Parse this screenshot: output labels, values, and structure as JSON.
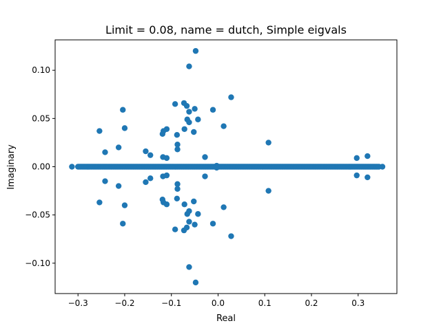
{
  "chart_data": {
    "type": "scatter",
    "title": "Limit = 0.08, name = dutch, Simple eigvals",
    "xlabel": "Real",
    "ylabel": "Imaginary",
    "xlim": [
      -0.349,
      0.383
    ],
    "ylim": [
      -0.1315,
      0.1315
    ],
    "xticks": [
      -0.3,
      -0.2,
      -0.1,
      0.0,
      0.1,
      0.2,
      0.3
    ],
    "xtick_labels": [
      "−0.3",
      "−0.2",
      "−0.1",
      "0.0",
      "0.1",
      "0.2",
      "0.3"
    ],
    "yticks": [
      -0.1,
      -0.05,
      0.0,
      0.05,
      0.1
    ],
    "ytick_labels": [
      "−0.10",
      "−0.05",
      "0.00",
      "0.05",
      "0.10"
    ],
    "marker_color": "#1f77b4",
    "grid": false,
    "real_axis_dense_ranges": [
      [
        -0.3,
        0.345
      ]
    ],
    "series": [
      {
        "values": [
          {
            "x": -0.313,
            "y": 0.0
          },
          {
            "x": 0.352,
            "y": 0.0
          },
          {
            "x": -0.048,
            "y": 0.12
          },
          {
            "x": -0.048,
            "y": -0.12
          },
          {
            "x": -0.062,
            "y": 0.104
          },
          {
            "x": -0.062,
            "y": -0.104
          },
          {
            "x": 0.028,
            "y": 0.072
          },
          {
            "x": 0.028,
            "y": -0.072
          },
          {
            "x": -0.073,
            "y": 0.066
          },
          {
            "x": -0.073,
            "y": -0.066
          },
          {
            "x": -0.092,
            "y": 0.065
          },
          {
            "x": -0.092,
            "y": -0.065
          },
          {
            "x": -0.067,
            "y": 0.063
          },
          {
            "x": -0.067,
            "y": -0.063
          },
          {
            "x": -0.05,
            "y": 0.06
          },
          {
            "x": -0.05,
            "y": -0.06
          },
          {
            "x": -0.204,
            "y": 0.059
          },
          {
            "x": -0.204,
            "y": -0.059
          },
          {
            "x": -0.011,
            "y": 0.059
          },
          {
            "x": -0.011,
            "y": -0.059
          },
          {
            "x": -0.062,
            "y": 0.057
          },
          {
            "x": -0.062,
            "y": -0.057
          },
          {
            "x": -0.043,
            "y": 0.049
          },
          {
            "x": -0.043,
            "y": -0.049
          },
          {
            "x": -0.066,
            "y": 0.049
          },
          {
            "x": -0.066,
            "y": -0.049
          },
          {
            "x": -0.062,
            "y": 0.046
          },
          {
            "x": -0.062,
            "y": -0.046
          },
          {
            "x": 0.012,
            "y": 0.042
          },
          {
            "x": 0.012,
            "y": -0.042
          },
          {
            "x": -0.2,
            "y": 0.04
          },
          {
            "x": -0.2,
            "y": -0.04
          },
          {
            "x": -0.11,
            "y": 0.039
          },
          {
            "x": -0.11,
            "y": -0.039
          },
          {
            "x": -0.072,
            "y": 0.039
          },
          {
            "x": -0.072,
            "y": -0.039
          },
          {
            "x": -0.117,
            "y": 0.037
          },
          {
            "x": -0.117,
            "y": -0.037
          },
          {
            "x": -0.254,
            "y": 0.037
          },
          {
            "x": -0.254,
            "y": -0.037
          },
          {
            "x": -0.052,
            "y": 0.036
          },
          {
            "x": -0.052,
            "y": -0.036
          },
          {
            "x": -0.119,
            "y": 0.034
          },
          {
            "x": -0.119,
            "y": -0.034
          },
          {
            "x": -0.088,
            "y": 0.033
          },
          {
            "x": -0.088,
            "y": -0.033
          },
          {
            "x": 0.108,
            "y": 0.025
          },
          {
            "x": 0.108,
            "y": -0.025
          },
          {
            "x": -0.087,
            "y": 0.023
          },
          {
            "x": -0.087,
            "y": -0.023
          },
          {
            "x": -0.213,
            "y": 0.02
          },
          {
            "x": -0.213,
            "y": -0.02
          },
          {
            "x": -0.087,
            "y": 0.018
          },
          {
            "x": -0.087,
            "y": -0.018
          },
          {
            "x": -0.155,
            "y": 0.016
          },
          {
            "x": -0.155,
            "y": -0.016
          },
          {
            "x": -0.242,
            "y": 0.015
          },
          {
            "x": -0.242,
            "y": -0.015
          },
          {
            "x": -0.145,
            "y": 0.012
          },
          {
            "x": -0.145,
            "y": -0.012
          },
          {
            "x": 0.32,
            "y": 0.011
          },
          {
            "x": 0.32,
            "y": -0.011
          },
          {
            "x": -0.118,
            "y": 0.01
          },
          {
            "x": -0.118,
            "y": -0.01
          },
          {
            "x": -0.11,
            "y": 0.009
          },
          {
            "x": -0.11,
            "y": -0.009
          },
          {
            "x": 0.297,
            "y": 0.009
          },
          {
            "x": 0.297,
            "y": -0.009
          },
          {
            "x": -0.028,
            "y": 0.01
          },
          {
            "x": -0.028,
            "y": -0.01
          },
          {
            "x": -0.003,
            "y": 0.001
          },
          {
            "x": -0.003,
            "y": -0.001
          }
        ]
      }
    ]
  }
}
